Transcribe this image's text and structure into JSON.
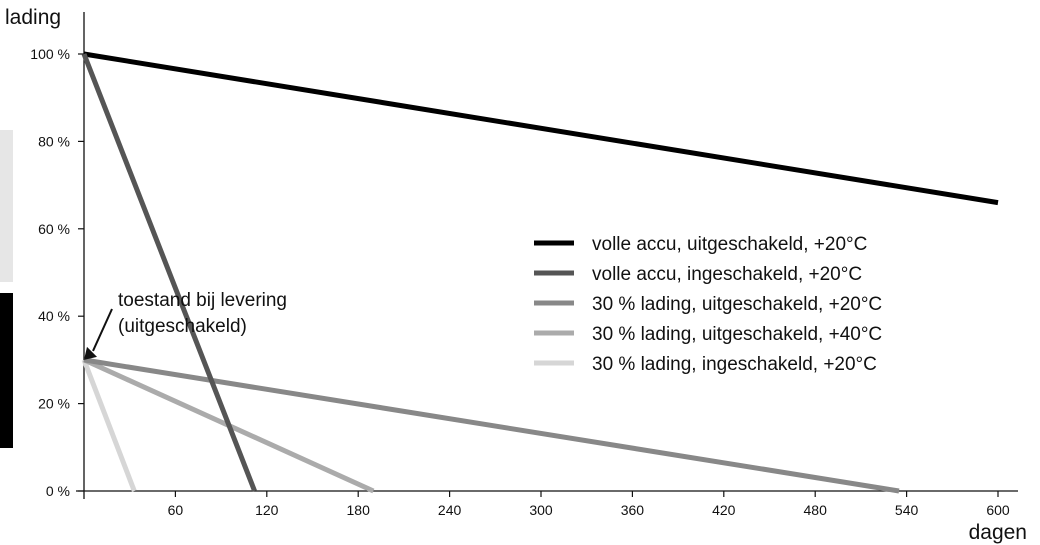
{
  "chart_data": {
    "type": "line",
    "ylabel": "lading",
    "xlabel": "dagen",
    "xlim": [
      0,
      600
    ],
    "ylim": [
      0,
      100
    ],
    "x_ticks": [
      60,
      120,
      180,
      240,
      300,
      360,
      420,
      480,
      540,
      600
    ],
    "y_ticks": [
      {
        "value": 0,
        "label": "0 %"
      },
      {
        "value": 20,
        "label": "20 %"
      },
      {
        "value": 40,
        "label": "40 %"
      },
      {
        "value": 60,
        "label": "60 %"
      },
      {
        "value": 80,
        "label": "80 %"
      },
      {
        "value": 100,
        "label": "100 %"
      }
    ],
    "legend_position": "center-right",
    "series": [
      {
        "name": "volle accu, uitgeschakeld, +20°C",
        "color": "#000000",
        "x": [
          0,
          600
        ],
        "y": [
          100,
          66
        ]
      },
      {
        "name": "volle accu, ingeschakeld, +20°C",
        "color": "#555555",
        "x": [
          0,
          112
        ],
        "y": [
          100,
          0
        ]
      },
      {
        "name": "30 % lading, uitgeschakeld, +20°C",
        "color": "#888888",
        "x": [
          0,
          535
        ],
        "y": [
          30,
          0
        ]
      },
      {
        "name": "30 % lading, uitgeschakeld, +40°C",
        "color": "#ababab",
        "x": [
          0,
          190
        ],
        "y": [
          30,
          0
        ]
      },
      {
        "name": "30 % lading, ingeschakeld, +20°C",
        "color": "#d6d6d6",
        "x": [
          0,
          33
        ],
        "y": [
          30,
          0
        ]
      }
    ],
    "annotation": {
      "lines": [
        "toestand bij levering",
        "(uitgeschakeld)"
      ],
      "x": 0,
      "y": 30
    }
  }
}
